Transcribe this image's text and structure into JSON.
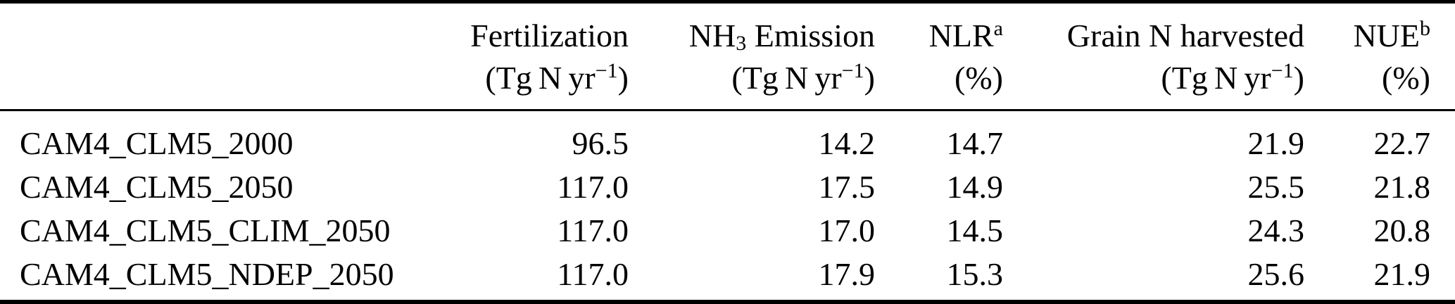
{
  "table": {
    "columns": [
      {
        "key": "scenario",
        "line1": "",
        "line2": ""
      },
      {
        "key": "fertilization",
        "line1": "Fertilization",
        "line2_open": "(Tg N yr",
        "line2_sup": "−1",
        "line2_close": ")"
      },
      {
        "key": "nh3_emission",
        "line1_pre": "NH",
        "line1_sub": "3",
        "line1_post": " Emission",
        "line2_open": "(Tg N yr",
        "line2_sup": "−1",
        "line2_close": ")"
      },
      {
        "key": "nlr",
        "line1": "NLR",
        "line1_sup": "a",
        "line2": "(%)"
      },
      {
        "key": "grain_n_harvested",
        "line1": "Grain N harvested",
        "line2_open": "(Tg N yr",
        "line2_sup": "−1",
        "line2_close": ")"
      },
      {
        "key": "nue",
        "line1": "NUE",
        "line1_sup": "b",
        "line2": "(%)"
      }
    ],
    "rows": [
      {
        "name": "CAM4_CLM5_2000",
        "fertilization": "96.5",
        "nh3_emission": "14.2",
        "nlr": "14.7",
        "grain_n_harvested": "21.9",
        "nue": "22.7"
      },
      {
        "name": "CAM4_CLM5_2050",
        "fertilization": "117.0",
        "nh3_emission": "17.5",
        "nlr": "14.9",
        "grain_n_harvested": "25.5",
        "nue": "21.8"
      },
      {
        "name": "CAM4_CLM5_CLIM_2050",
        "fertilization": "117.0",
        "nh3_emission": "17.0",
        "nlr": "14.5",
        "grain_n_harvested": "24.3",
        "nue": "20.8"
      },
      {
        "name": "CAM4_CLM5_NDEP_2050",
        "fertilization": "117.0",
        "nh3_emission": "17.9",
        "nlr": "15.3",
        "grain_n_harvested": "25.6",
        "nue": "21.9"
      }
    ]
  },
  "colors": {
    "text": "#000000",
    "background": "#ffffff",
    "rule": "#000000"
  }
}
